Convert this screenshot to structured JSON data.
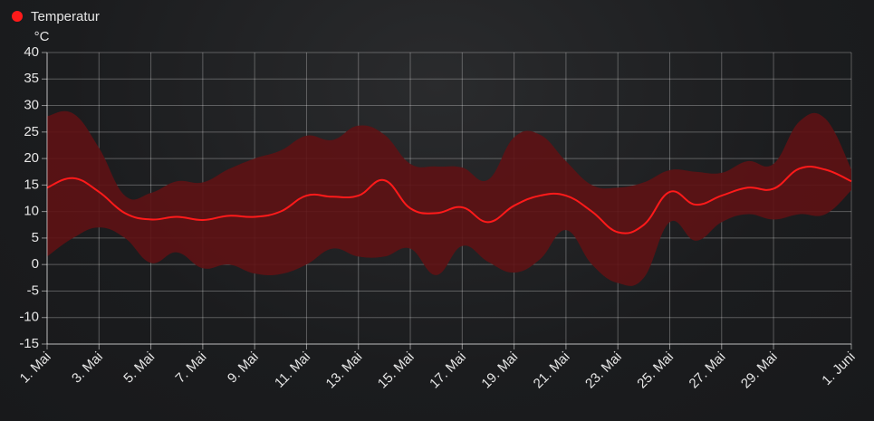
{
  "chart_data": {
    "type": "line",
    "y_label": "°C",
    "categories": [
      "1. Mai",
      null,
      "3. Mai",
      null,
      "5. Mai",
      null,
      "7. Mai",
      null,
      "9. Mai",
      null,
      "11. Mai",
      null,
      "13. Mai",
      null,
      "15. Mai",
      null,
      "17. Mai",
      null,
      "19. Mai",
      null,
      "21. Mai",
      null,
      "23. Mai",
      null,
      "25. Mai",
      null,
      "27. Mai",
      null,
      "29. Mai",
      null,
      null,
      "1. Juni"
    ],
    "series": [
      {
        "name": "Temperatur",
        "color": "#ff1a1a",
        "values": [
          14.5,
          16.3,
          13.7,
          9.7,
          8.5,
          9,
          8.4,
          9.2,
          9,
          10,
          13,
          12.8,
          13,
          15.9,
          10.6,
          9.7,
          10.8,
          8,
          11.1,
          13,
          13,
          10,
          6.1,
          7.5,
          13.7,
          11.3,
          13,
          14.5,
          14.3,
          18.1,
          17.9,
          15.7
        ],
        "max": [
          28,
          28.5,
          22,
          13,
          13.5,
          15.7,
          15.5,
          18,
          20,
          21.5,
          24.3,
          23.5,
          26.2,
          24.5,
          19,
          18.5,
          18.3,
          16,
          24,
          24.5,
          19.5,
          15,
          14.5,
          15.5,
          17.8,
          17.5,
          17.3,
          19.5,
          19,
          27,
          27.5,
          18
        ],
        "min": [
          1.5,
          5,
          7,
          5,
          0.3,
          2.3,
          -0.7,
          0,
          -1.7,
          -1.8,
          0,
          3,
          1.5,
          1.5,
          3,
          -2,
          3.5,
          0.5,
          -1.5,
          1,
          6.5,
          0,
          -3.5,
          -2.5,
          8,
          4.5,
          8,
          9.5,
          8.5,
          9.5,
          9.5,
          14
        ],
        "band_color": "#5e1214"
      }
    ],
    "ylim": [
      -15,
      40
    ],
    "yticks": [
      -15,
      -10,
      -5,
      0,
      5,
      10,
      15,
      20,
      25,
      30,
      35,
      40
    ],
    "grid": true,
    "legend": "top-left"
  }
}
